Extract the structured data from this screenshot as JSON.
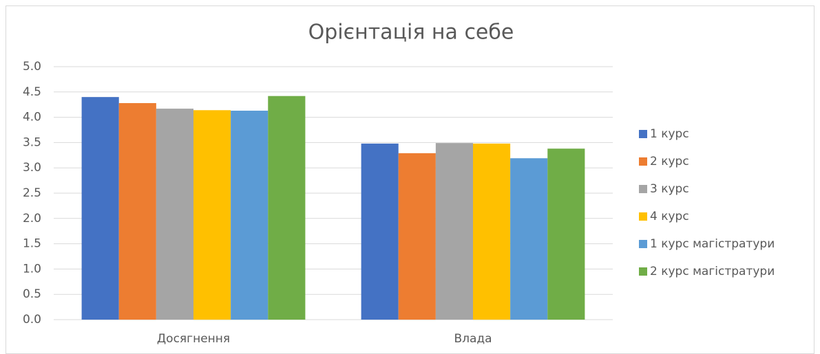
{
  "chart_data": {
    "type": "bar",
    "title": "Орієнтація на себе",
    "categories": [
      "Досягнення",
      "Влада"
    ],
    "series": [
      {
        "name": "1 курс",
        "color": "#4472c4",
        "values": [
          4.4,
          3.48
        ]
      },
      {
        "name": "2 курс",
        "color": "#ed7d31",
        "values": [
          4.28,
          3.29
        ]
      },
      {
        "name": "3 курс",
        "color": "#a5a5a5",
        "values": [
          4.17,
          3.49
        ]
      },
      {
        "name": "4 курс",
        "color": "#ffc000",
        "values": [
          4.14,
          3.48
        ]
      },
      {
        "name": "1 курс магістратури",
        "color": "#5b9bd5",
        "values": [
          4.13,
          3.19
        ]
      },
      {
        "name": "2 курс магістратури",
        "color": "#70ad47",
        "values": [
          4.42,
          3.38
        ]
      }
    ],
    "ylim": [
      0,
      5
    ],
    "yticks": [
      {
        "value": 0,
        "label": "0.0"
      },
      0.5,
      {
        "value": 1,
        "label": "1.0"
      },
      1.5,
      {
        "value": 2,
        "label": "2.0"
      },
      2.5,
      {
        "value": 3,
        "label": "3.0"
      },
      3.5,
      {
        "value": 4,
        "label": "4.0"
      },
      4.5,
      {
        "value": 5,
        "label": "5.0"
      }
    ],
    "grid": true,
    "legend": "right"
  }
}
